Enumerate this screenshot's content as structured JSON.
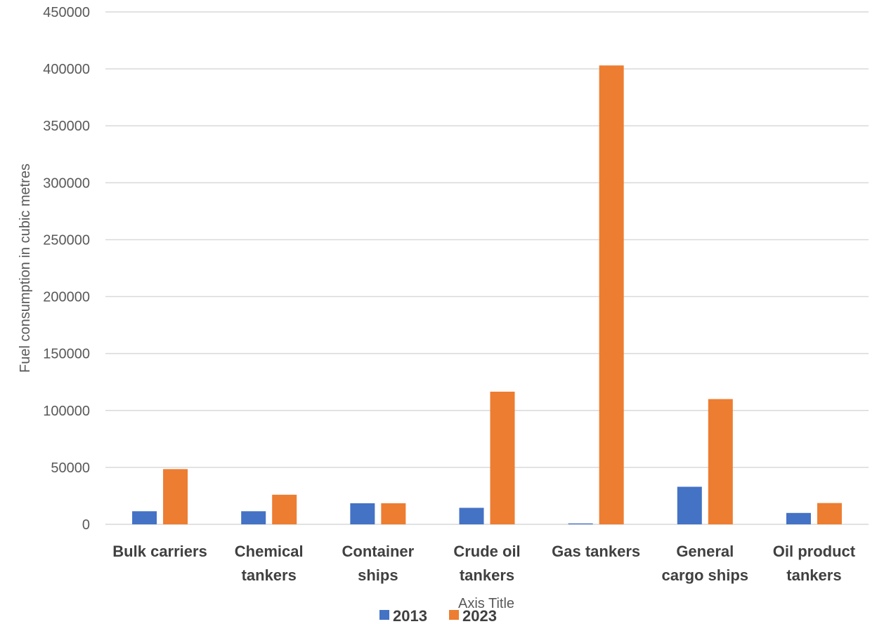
{
  "chart_data": {
    "type": "bar",
    "categories": [
      [
        "Bulk carriers"
      ],
      [
        "Chemical",
        "tankers"
      ],
      [
        "Container",
        "ships"
      ],
      [
        "Crude oil",
        "tankers"
      ],
      [
        "Gas tankers"
      ],
      [
        "General",
        "cargo ships"
      ],
      [
        "Oil product",
        "tankers"
      ]
    ],
    "series": [
      {
        "name": "2013",
        "color": "#4472C4",
        "values": [
          11500,
          11500,
          18500,
          14500,
          800,
          33000,
          10000
        ]
      },
      {
        "name": "2023",
        "color": "#ED7D31",
        "values": [
          48500,
          26000,
          18500,
          116500,
          403000,
          110000,
          18700
        ]
      }
    ],
    "title": "",
    "xlabel": "Axis Title",
    "ylabel": "Fuel consumption in cubic metres",
    "ylim": [
      0,
      450000
    ],
    "yticks": [
      0,
      50000,
      100000,
      150000,
      200000,
      250000,
      300000,
      350000,
      400000,
      450000
    ],
    "grid": true,
    "gridColor": "#D9D9D9",
    "legend": "bottom"
  }
}
